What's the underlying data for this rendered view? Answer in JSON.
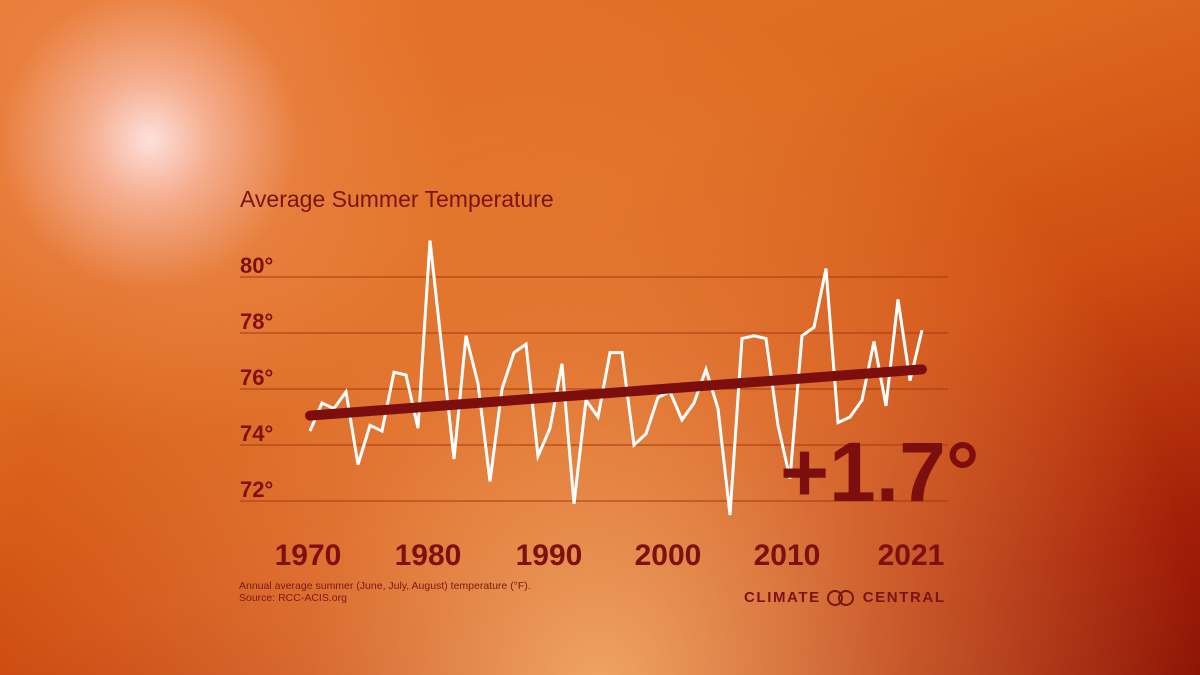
{
  "chart_data": {
    "type": "line",
    "title": "Average Summer Temperature",
    "xlabel": "",
    "ylabel": "",
    "x_ticks": [
      "1970",
      "1980",
      "1990",
      "2000",
      "2010",
      "2021"
    ],
    "y_ticks": [
      "72°",
      "74°",
      "76°",
      "78°",
      "80°"
    ],
    "ylim": [
      71,
      82
    ],
    "xlim": [
      1970,
      2021
    ],
    "grid": true,
    "series": [
      {
        "name": "Annual average summer temperature (°F)",
        "color": "#ffffff",
        "x": [
          1970,
          1971,
          1972,
          1973,
          1974,
          1975,
          1976,
          1977,
          1978,
          1979,
          1980,
          1981,
          1982,
          1983,
          1984,
          1985,
          1986,
          1987,
          1988,
          1989,
          1990,
          1991,
          1992,
          1993,
          1994,
          1995,
          1996,
          1997,
          1998,
          1999,
          2000,
          2001,
          2002,
          2003,
          2004,
          2005,
          2006,
          2007,
          2008,
          2009,
          2010,
          2011,
          2012,
          2013,
          2014,
          2015,
          2016,
          2017,
          2018,
          2019,
          2020,
          2021
        ],
        "values": [
          74.5,
          75.5,
          75.3,
          75.9,
          73.3,
          74.7,
          74.5,
          76.6,
          76.5,
          74.6,
          81.3,
          77.4,
          73.5,
          77.9,
          76.2,
          72.7,
          76.0,
          77.3,
          77.6,
          73.6,
          74.6,
          76.9,
          71.9,
          75.6,
          75.0,
          77.3,
          77.3,
          74.0,
          74.4,
          75.7,
          75.9,
          74.9,
          75.5,
          76.7,
          75.3,
          71.5,
          77.8,
          77.9,
          77.8,
          74.7,
          72.8,
          77.9,
          78.2,
          80.3,
          74.8,
          75.0,
          75.6,
          77.7,
          75.4,
          79.2,
          76.3,
          78.1
        ]
      },
      {
        "name": "Trend",
        "color": "#7d0e0e",
        "x": [
          1970,
          2021
        ],
        "values": [
          75.05,
          76.7
        ]
      }
    ],
    "annotations": [
      "+1.7°"
    ]
  },
  "footnote": {
    "line1": "Annual average summer (June, July, August) temperature (°F).",
    "line2": "Source: RCC-ACIS.org"
  },
  "logo": {
    "left": "CLIMATE",
    "right": "CENTRAL"
  },
  "colors": {
    "accent": "#7d0e0e",
    "line": "#ffffff"
  }
}
